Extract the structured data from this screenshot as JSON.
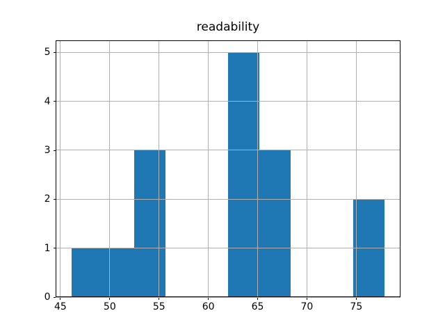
{
  "figure": {
    "background": "#ffffff"
  },
  "chart_data": {
    "type": "bar",
    "chart_kind": "histogram",
    "title": "readability",
    "bin_edges": [
      46.1,
      49.28,
      52.46,
      55.64,
      58.82,
      62.0,
      65.18,
      68.36,
      71.54,
      74.72,
      77.9
    ],
    "counts": [
      1,
      1,
      3,
      0,
      0,
      5,
      3,
      0,
      0,
      2
    ],
    "xticks": [
      45,
      50,
      55,
      60,
      65,
      70,
      75
    ],
    "yticks": [
      0,
      1,
      2,
      3,
      4,
      5
    ],
    "xlim": [
      44.51,
      79.49
    ],
    "ylim": [
      0,
      5.25
    ],
    "xlabel": "",
    "ylabel": "",
    "bar_color": "#1f77b4",
    "grid": true,
    "grid_color": "#b0b0b0",
    "frame_color": "#000000",
    "legend_position": "none"
  }
}
